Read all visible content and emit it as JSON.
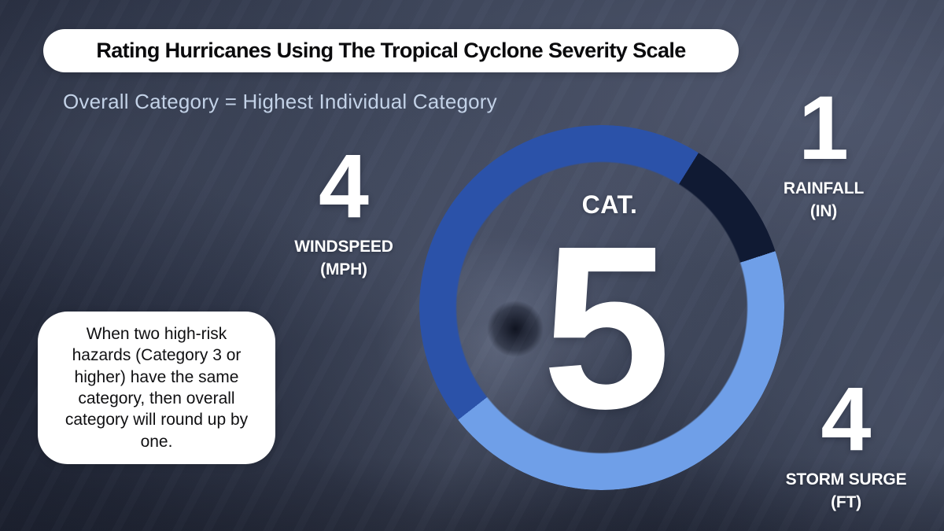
{
  "header": {
    "title": "Rating Hurricanes Using The Tropical Cyclone Severity Scale",
    "subtitle": "Overall Category = Highest Individual Category"
  },
  "note": {
    "text": "When two high-risk hazards (Category 3 or higher) have the same category, then overall category will round up by one."
  },
  "chart_data": {
    "type": "pie",
    "subtype": "donut",
    "title": "Tropical Cyclone Severity Scale rating",
    "center_label": "CAT.",
    "center_value": "5",
    "rotation_from_deg": 232,
    "segments": [
      {
        "name": "Windspeed",
        "label": "WINDSPEED",
        "unit": "(MPH)",
        "value": 4,
        "color": "#2b52a9"
      },
      {
        "name": "Rainfall",
        "label": "RAINFALL",
        "unit": "(IN)",
        "value": 1,
        "color": "#101a33"
      },
      {
        "name": "Storm Surge",
        "label": "STORM SURGE",
        "unit": "(FT)",
        "value": 4,
        "color": "#6f9fe8"
      }
    ],
    "legend_position": "around-ring",
    "annotation": "Overall category 5 is shown in the donut hole; segment arcs are proportional to each hazard's category (4 + 1 + 4)"
  },
  "colors": {
    "title_text": "#0b0b0d",
    "subtitle_text": "#c3d2e7",
    "card_bg": "#ffffff",
    "ring_windspeed": "#2b52a9",
    "ring_rainfall": "#101a33",
    "ring_storm_surge": "#6f9fe8",
    "background_base": "#3a4257"
  }
}
